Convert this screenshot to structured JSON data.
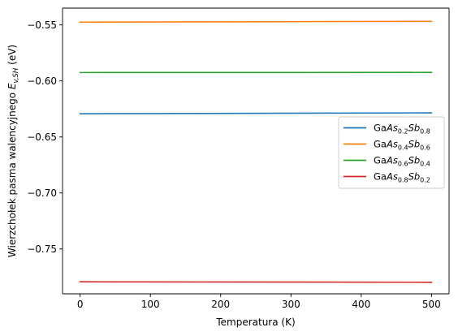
{
  "chart_data": {
    "type": "line",
    "title": "",
    "xlabel": "Temperatura (K)",
    "ylabel_prefix": "Wierzchołek pasma walencyjnego ",
    "ylabel_symbol": "E",
    "ylabel_subscript": "v,SH",
    "ylabel_suffix": " (eV)",
    "xlim": [
      -25,
      525
    ],
    "ylim": [
      -0.79,
      -0.535
    ],
    "xticks": [
      0,
      100,
      200,
      300,
      400,
      500
    ],
    "xtick_labels": [
      "0",
      "100",
      "200",
      "300",
      "400",
      "500"
    ],
    "yticks": [
      -0.55,
      -0.6,
      -0.65,
      -0.7,
      -0.75
    ],
    "ytick_labels": [
      "−0.55",
      "−0.60",
      "−0.65",
      "−0.70",
      "−0.75"
    ],
    "legend_position": "center-right",
    "grid": false,
    "series": [
      {
        "name": "GaAs0.2Sb0.8",
        "label_prefix": "Ga",
        "label_parts": [
          {
            "base": "As",
            "sub": "0.2"
          },
          {
            "base": "Sb",
            "sub": "0.8"
          }
        ],
        "color": "#1f77b4",
        "x": [
          0,
          500
        ],
        "y": [
          -0.6293,
          -0.6285
        ]
      },
      {
        "name": "GaAs0.4Sb0.6",
        "label_prefix": "Ga",
        "label_parts": [
          {
            "base": "As",
            "sub": "0.4"
          },
          {
            "base": "Sb",
            "sub": "0.6"
          }
        ],
        "color": "#ff7f0e",
        "x": [
          0,
          500
        ],
        "y": [
          -0.5475,
          -0.5468
        ]
      },
      {
        "name": "GaAs0.6Sb0.4",
        "label_prefix": "Ga",
        "label_parts": [
          {
            "base": "As",
            "sub": "0.6"
          },
          {
            "base": "Sb",
            "sub": "0.4"
          }
        ],
        "color": "#2ca02c",
        "x": [
          0,
          500
        ],
        "y": [
          -0.5925,
          -0.5924
        ]
      },
      {
        "name": "GaAs0.8Sb0.2",
        "label_prefix": "Ga",
        "label_parts": [
          {
            "base": "As",
            "sub": "0.8"
          },
          {
            "base": "Sb",
            "sub": "0.2"
          }
        ],
        "color": "#d62728",
        "x": [
          0,
          500
        ],
        "y": [
          -0.7793,
          -0.7797
        ]
      }
    ]
  }
}
